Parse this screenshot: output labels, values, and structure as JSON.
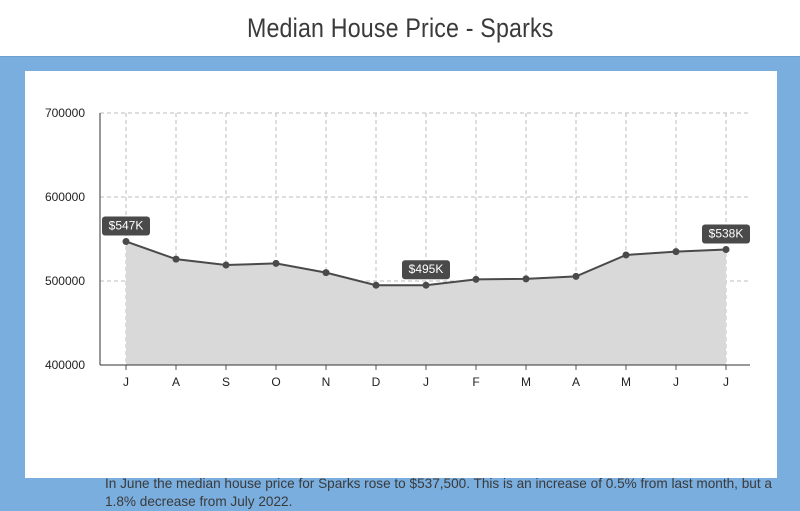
{
  "header": {
    "title": "Median House Price - Sparks"
  },
  "caption": "In June the median house price for Sparks rose to $537,500.  This is an increase of 0.5% from last month, but a 1.8% decrease from July 2022.",
  "colors": {
    "background": "#7aaedf",
    "area_fill": "#d9d9d9",
    "line": "#4a4a4a",
    "label_bg": "#4a4a4a"
  },
  "chart_data": {
    "type": "area",
    "title": "Median House Price - Sparks",
    "categories": [
      "J",
      "A",
      "S",
      "O",
      "N",
      "D",
      "J",
      "F",
      "M",
      "A",
      "M",
      "J",
      "J"
    ],
    "values": [
      547000,
      526000,
      519000,
      521000,
      510000,
      495000,
      495000,
      502000,
      502500,
      505500,
      531000,
      535000,
      537500
    ],
    "ylim": [
      400000,
      700000
    ],
    "yticks": [
      "700000",
      "600000",
      "500000",
      "400000"
    ],
    "grid": true,
    "legend": "none",
    "data_labels": [
      {
        "index": 0,
        "text": "$547K"
      },
      {
        "index": 6,
        "text": "$495K"
      },
      {
        "index": 12,
        "text": "$538K"
      }
    ]
  }
}
